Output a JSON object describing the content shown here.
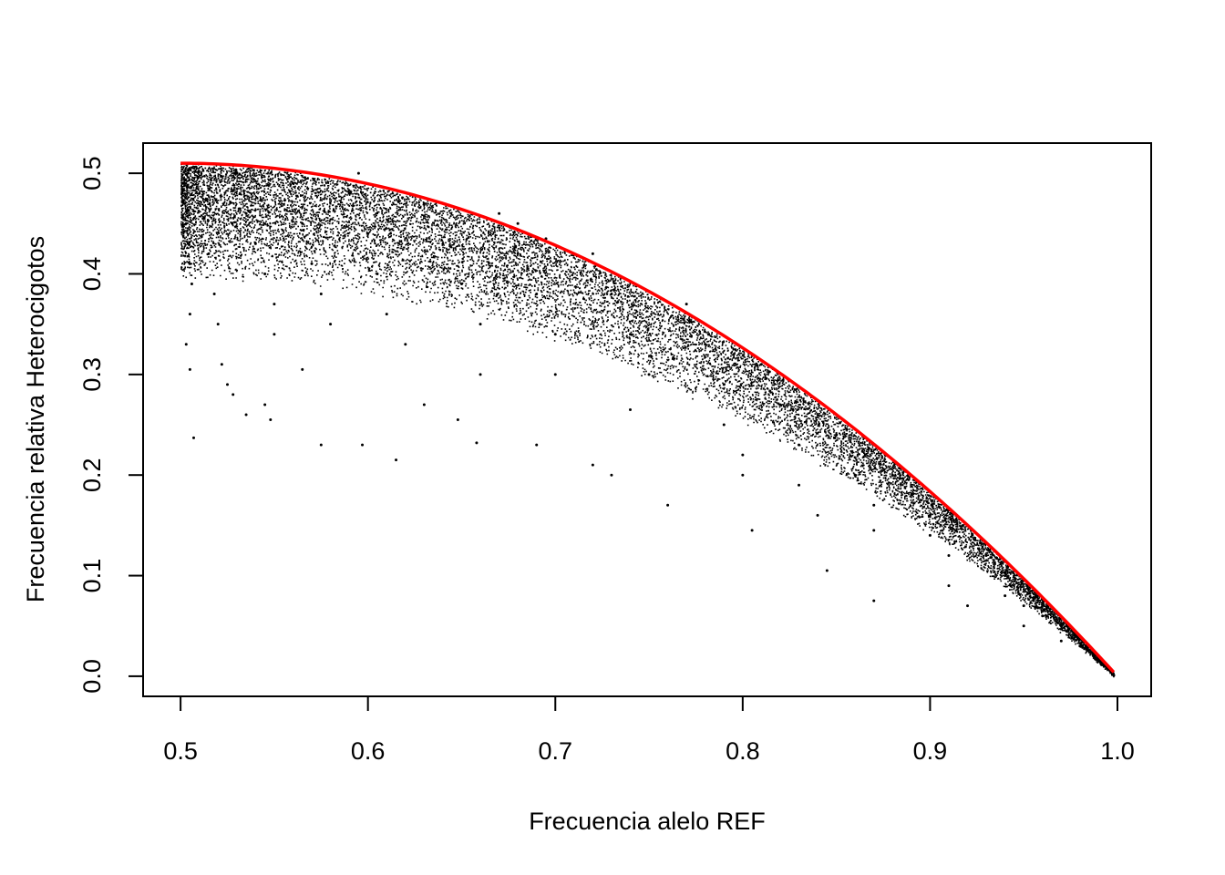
{
  "chart_data": {
    "type": "scatter",
    "title": "",
    "xlabel": "Frecuencia alelo REF",
    "ylabel": "Frecuencia relativa Heterocigotos",
    "xlim": [
      0.48,
      1.018
    ],
    "ylim": [
      -0.02,
      0.53
    ],
    "grid": false,
    "legend": "none",
    "x_ticks": [
      {
        "value": 0.5,
        "label": "0.5"
      },
      {
        "value": 0.6,
        "label": "0.6"
      },
      {
        "value": 0.7,
        "label": "0.7"
      },
      {
        "value": 0.8,
        "label": "0.8"
      },
      {
        "value": 0.9,
        "label": "0.9"
      },
      {
        "value": 1.0,
        "label": "1.0"
      }
    ],
    "y_ticks": [
      {
        "value": 0.0,
        "label": "0.0"
      },
      {
        "value": 0.1,
        "label": "0.1"
      },
      {
        "value": 0.2,
        "label": "0.2"
      },
      {
        "value": 0.3,
        "label": "0.3"
      },
      {
        "value": 0.4,
        "label": "0.4"
      },
      {
        "value": 0.5,
        "label": "0.5"
      }
    ],
    "series": [
      {
        "kind": "points",
        "color": "#000000",
        "points": [
          [
            0.501,
            0.49
          ],
          [
            0.502,
            0.47
          ],
          [
            0.503,
            0.45
          ],
          [
            0.504,
            0.43
          ],
          [
            0.505,
            0.41
          ],
          [
            0.506,
            0.39
          ],
          [
            0.505,
            0.36
          ],
          [
            0.503,
            0.33
          ],
          [
            0.505,
            0.305
          ],
          [
            0.507,
            0.237
          ],
          [
            0.51,
            0.48
          ],
          [
            0.512,
            0.455
          ],
          [
            0.515,
            0.42
          ],
          [
            0.518,
            0.38
          ],
          [
            0.52,
            0.35
          ],
          [
            0.522,
            0.31
          ],
          [
            0.525,
            0.29
          ],
          [
            0.528,
            0.28
          ],
          [
            0.53,
            0.5
          ],
          [
            0.535,
            0.46
          ],
          [
            0.54,
            0.43
          ],
          [
            0.545,
            0.4
          ],
          [
            0.55,
            0.37
          ],
          [
            0.55,
            0.34
          ],
          [
            0.545,
            0.27
          ],
          [
            0.548,
            0.255
          ],
          [
            0.535,
            0.26
          ],
          [
            0.56,
            0.49
          ],
          [
            0.565,
            0.45
          ],
          [
            0.57,
            0.41
          ],
          [
            0.575,
            0.38
          ],
          [
            0.58,
            0.35
          ],
          [
            0.575,
            0.23
          ],
          [
            0.565,
            0.305
          ],
          [
            0.59,
            0.48
          ],
          [
            0.595,
            0.5
          ],
          [
            0.6,
            0.44
          ],
          [
            0.605,
            0.4
          ],
          [
            0.61,
            0.36
          ],
          [
            0.62,
            0.33
          ],
          [
            0.597,
            0.23
          ],
          [
            0.615,
            0.215
          ],
          [
            0.63,
            0.47
          ],
          [
            0.64,
            0.43
          ],
          [
            0.65,
            0.39
          ],
          [
            0.66,
            0.35
          ],
          [
            0.66,
            0.3
          ],
          [
            0.658,
            0.232
          ],
          [
            0.63,
            0.27
          ],
          [
            0.648,
            0.255
          ],
          [
            0.67,
            0.46
          ],
          [
            0.68,
            0.42
          ],
          [
            0.69,
            0.38
          ],
          [
            0.7,
            0.34
          ],
          [
            0.7,
            0.3
          ],
          [
            0.69,
            0.23
          ],
          [
            0.72,
            0.21
          ],
          [
            0.68,
            0.45
          ],
          [
            0.695,
            0.435
          ],
          [
            0.72,
            0.42
          ],
          [
            0.73,
            0.38
          ],
          [
            0.74,
            0.34
          ],
          [
            0.75,
            0.3
          ],
          [
            0.74,
            0.265
          ],
          [
            0.73,
            0.2
          ],
          [
            0.76,
            0.17
          ],
          [
            0.77,
            0.37
          ],
          [
            0.78,
            0.33
          ],
          [
            0.79,
            0.29
          ],
          [
            0.79,
            0.25
          ],
          [
            0.8,
            0.22
          ],
          [
            0.805,
            0.145
          ],
          [
            0.8,
            0.2
          ],
          [
            0.81,
            0.31
          ],
          [
            0.82,
            0.27
          ],
          [
            0.83,
            0.23
          ],
          [
            0.83,
            0.19
          ],
          [
            0.84,
            0.16
          ],
          [
            0.845,
            0.105
          ],
          [
            0.85,
            0.24
          ],
          [
            0.86,
            0.2
          ],
          [
            0.87,
            0.17
          ],
          [
            0.87,
            0.145
          ],
          [
            0.87,
            0.075
          ],
          [
            0.9,
            0.16
          ],
          [
            0.88,
            0.2
          ],
          [
            0.89,
            0.18
          ],
          [
            0.9,
            0.14
          ],
          [
            0.91,
            0.12
          ],
          [
            0.91,
            0.09
          ],
          [
            0.92,
            0.07
          ],
          [
            0.93,
            0.12
          ],
          [
            0.94,
            0.1
          ],
          [
            0.94,
            0.08
          ],
          [
            0.95,
            0.07
          ],
          [
            0.95,
            0.05
          ],
          [
            0.96,
            0.06
          ],
          [
            0.97,
            0.05
          ],
          [
            0.97,
            0.035
          ],
          [
            0.98,
            0.03
          ],
          [
            0.99,
            0.015
          ],
          [
            0.995,
            0.008
          ]
        ]
      },
      {
        "kind": "curve",
        "color": "#ff0000",
        "equation": "2*p*(1-p)*(1+1/(2N))",
        "x_range": [
          0.5,
          0.998
        ]
      }
    ]
  }
}
